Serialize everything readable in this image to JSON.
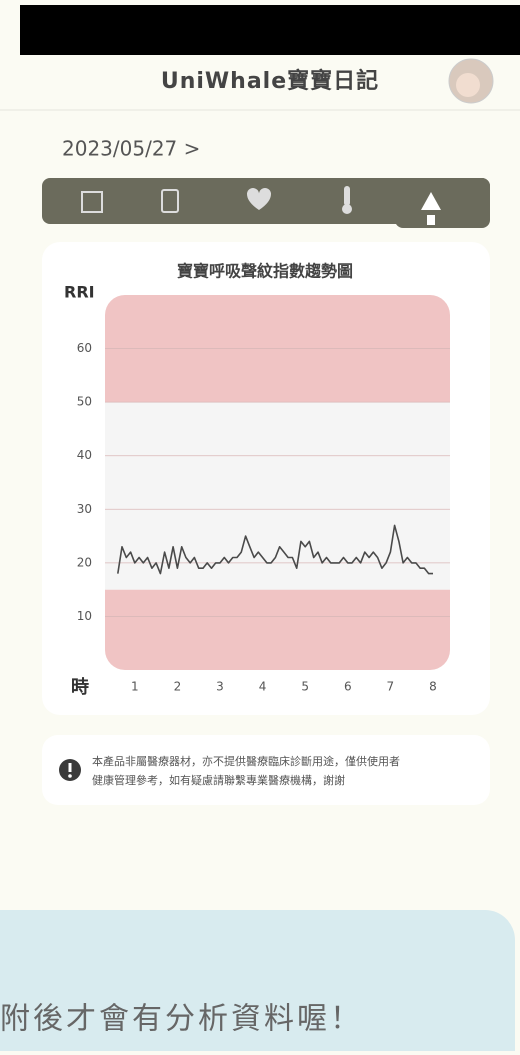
{
  "header": {
    "title": "UniWhale寶寶日記",
    "date": "2023/05/27 >"
  },
  "chart_data": {
    "type": "line",
    "title": "寶寶呼吸聲紋指數趨勢圖",
    "y_label": "RRI",
    "x_label": "時",
    "color": "#4a4a4a",
    "x": [
      0.6,
      0.7,
      0.8,
      0.9,
      1.0,
      1.1,
      1.2,
      1.3,
      1.4,
      1.5,
      1.6,
      1.7,
      1.8,
      1.9,
      2.0,
      2.1,
      2.2,
      2.3,
      2.4,
      2.5,
      2.6,
      2.7,
      2.8,
      2.9,
      3.0,
      3.1,
      3.2,
      3.3,
      3.4,
      3.5,
      3.6,
      3.7,
      3.8,
      3.9,
      4.0,
      4.1,
      4.2,
      4.3,
      4.4,
      4.5,
      4.6,
      4.7,
      4.8,
      4.9,
      5.0,
      5.1,
      5.2,
      5.3,
      5.4,
      5.5,
      5.6,
      5.7,
      5.8,
      5.9,
      6.0,
      6.1,
      6.2,
      6.3,
      6.4,
      6.5,
      6.6,
      6.7,
      6.8,
      6.9,
      7.0,
      7.1,
      7.2,
      7.3,
      7.4,
      7.5,
      7.6,
      7.7,
      7.8,
      7.9,
      8.0
    ],
    "values": [
      18,
      23,
      21,
      22,
      20,
      21,
      20,
      21,
      19,
      20,
      18,
      22,
      19,
      23,
      19,
      23,
      21,
      20,
      21,
      19,
      19,
      20,
      19,
      20,
      20,
      21,
      20,
      21,
      21,
      22,
      25,
      23,
      21,
      22,
      21,
      20,
      20,
      21,
      23,
      22,
      21,
      21,
      19,
      24,
      23,
      24,
      21,
      22,
      20,
      21,
      20,
      20,
      20,
      21,
      20,
      20,
      21,
      20,
      22,
      21,
      22,
      21,
      19,
      20,
      22,
      27,
      24,
      20,
      21,
      20,
      20,
      19,
      19,
      18,
      18
    ],
    "xlim": [
      0.3,
      8.4
    ],
    "xticks": [
      1,
      2,
      3,
      4,
      5,
      6,
      7,
      8
    ],
    "ylim": [
      0,
      70
    ],
    "yticks": [
      10,
      20,
      30,
      40,
      50,
      60
    ],
    "grid": true,
    "bands": [
      {
        "from": 0,
        "to": 15,
        "color": "#f0c4c4"
      },
      {
        "from": 15,
        "to": 50,
        "color": "#f5f5f5"
      },
      {
        "from": 50,
        "to": 70,
        "color": "#f0c4c4"
      }
    ]
  },
  "notice": {
    "lines": [
      "本產品非屬醫療器材，亦不提供醫療臨床診斷用途，僅供使用者",
      "健康管理參考，如有疑慮請聯繫專業醫療機構，謝謝"
    ]
  },
  "banner": {
    "text": "附後才會有分析資料喔！"
  }
}
